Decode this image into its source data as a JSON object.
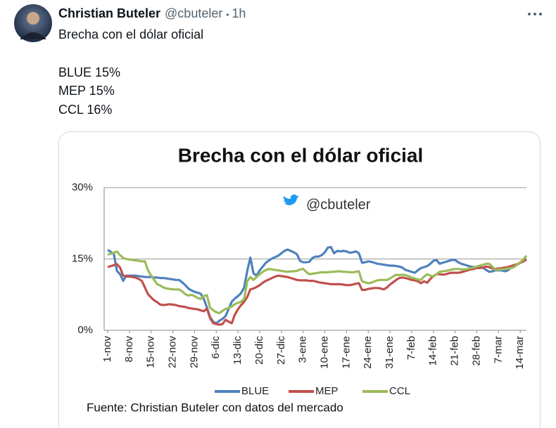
{
  "tweet": {
    "author": "Christian Buteler",
    "handle": "@cbuteler",
    "time": "1h",
    "text": [
      "Brecha con el dólar oficial",
      "BLUE 15%",
      "MEP 15%",
      "CCL 16%"
    ]
  },
  "chart_data": {
    "type": "line",
    "title": "Brecha con el dólar oficial",
    "annotation": "@cbuteler",
    "source": "Fuente: Christian Buteler con datos del mercado",
    "categories": [
      "1-nov",
      null,
      null,
      null,
      null,
      null,
      null,
      "8-nov",
      null,
      null,
      null,
      null,
      null,
      null,
      "15-nov",
      null,
      null,
      null,
      null,
      null,
      null,
      "22-nov",
      null,
      null,
      null,
      null,
      null,
      null,
      "29-nov",
      null,
      null,
      null,
      null,
      null,
      null,
      "6-dic",
      null,
      null,
      null,
      null,
      null,
      null,
      "13-dic",
      null,
      null,
      null,
      null,
      null,
      null,
      "20-dic",
      null,
      null,
      null,
      null,
      null,
      null,
      "27-dic",
      null,
      null,
      null,
      null,
      null,
      null,
      "3-ene",
      null,
      null,
      null,
      null,
      null,
      null,
      "10-ene",
      null,
      null,
      null,
      null,
      null,
      null,
      "17-ene",
      null,
      null,
      null,
      null,
      null,
      null,
      "24-ene",
      null,
      null,
      null,
      null,
      null,
      null,
      "31-ene",
      null,
      null,
      null,
      null,
      null,
      null,
      "7-feb",
      null,
      null,
      null,
      null,
      null,
      null,
      "14-feb",
      null,
      null,
      null,
      null,
      null,
      null,
      "21-feb",
      null,
      null,
      null,
      null,
      null,
      null,
      "28-feb",
      null,
      null,
      null,
      null,
      null,
      null,
      "7-mar",
      null,
      null,
      null,
      null,
      null,
      null,
      "14-mar",
      null,
      null
    ],
    "series": [
      {
        "name": "BLUE",
        "color": "#4f81bd",
        "values": [
          16.9,
          16.5,
          16.0,
          12.5,
          11.8,
          10.4,
          11.5,
          11.5,
          11.5,
          11.5,
          11.4,
          11.3,
          11.2,
          11.2,
          11.2,
          11.1,
          11.1,
          11.0,
          11.0,
          10.9,
          10.8,
          10.7,
          10.6,
          10.6,
          10.1,
          9.5,
          8.8,
          8.4,
          8.1,
          7.9,
          7.7,
          6.6,
          4.8,
          2.8,
          1.8,
          1.5,
          2.0,
          2.4,
          3.0,
          4.5,
          6.0,
          6.7,
          7.2,
          7.8,
          9.0,
          12.5,
          15.3,
          12.0,
          11.5,
          12.6,
          13.4,
          14.2,
          14.7,
          15.1,
          15.4,
          15.7,
          16.2,
          16.7,
          17.0,
          16.7,
          16.4,
          16.0,
          14.6,
          14.3,
          14.3,
          14.4,
          15.2,
          15.5,
          15.5,
          15.8,
          16.4,
          17.4,
          17.5,
          16.2,
          16.7,
          16.6,
          16.7,
          16.6,
          16.3,
          16.4,
          16.6,
          16.2,
          14.2,
          14.3,
          14.5,
          14.4,
          14.2,
          14.0,
          13.9,
          13.8,
          13.7,
          13.6,
          13.6,
          13.5,
          13.4,
          13.2,
          12.7,
          12.5,
          12.3,
          12.1,
          12.6,
          13.1,
          13.3,
          13.5,
          14.0,
          14.6,
          14.8,
          14.0,
          14.2,
          14.4,
          14.6,
          14.8,
          14.8,
          14.3,
          14.0,
          13.8,
          13.6,
          13.4,
          13.3,
          13.3,
          13.3,
          13.2,
          12.7,
          12.3,
          12.4,
          12.6,
          12.6,
          12.6,
          12.4,
          12.6,
          13.2,
          13.5,
          13.8,
          14.2,
          14.6,
          15.0
        ]
      },
      {
        "name": "MEP",
        "color": "#c0504d",
        "values": [
          13.3,
          13.5,
          13.7,
          13.9,
          13.2,
          11.5,
          11.3,
          11.3,
          11.2,
          11.1,
          10.8,
          10.4,
          9.0,
          7.6,
          6.9,
          6.3,
          5.9,
          5.4,
          5.3,
          5.4,
          5.5,
          5.4,
          5.3,
          5.1,
          5.0,
          4.9,
          4.7,
          4.6,
          4.5,
          4.4,
          4.2,
          4.0,
          4.6,
          2.6,
          1.5,
          1.3,
          1.2,
          1.3,
          2.2,
          1.8,
          1.5,
          3.3,
          4.4,
          5.3,
          6.0,
          7.0,
          8.6,
          8.8,
          9.1,
          9.5,
          10.0,
          10.4,
          10.7,
          11.0,
          11.3,
          11.5,
          11.4,
          11.3,
          11.2,
          11.0,
          10.8,
          10.6,
          10.5,
          10.5,
          10.5,
          10.4,
          10.4,
          10.3,
          10.1,
          10.0,
          9.9,
          9.8,
          9.7,
          9.7,
          9.7,
          9.7,
          9.6,
          9.5,
          9.5,
          9.6,
          9.8,
          9.9,
          8.5,
          8.5,
          8.7,
          8.8,
          8.9,
          8.9,
          8.8,
          8.6,
          9.0,
          9.6,
          10.1,
          10.6,
          11.0,
          11.1,
          11.0,
          10.8,
          10.6,
          10.5,
          10.3,
          9.9,
          10.3,
          10.0,
          10.8,
          11.4,
          11.8,
          11.8,
          11.7,
          11.8,
          12.0,
          12.1,
          12.1,
          12.1,
          12.2,
          12.4,
          12.6,
          12.8,
          12.9,
          13.1,
          13.1,
          13.2,
          13.4,
          13.3,
          13.0,
          12.9,
          13.0,
          13.1,
          13.2,
          13.3,
          13.5,
          13.7,
          13.9,
          14.2,
          14.5,
          14.9
        ]
      },
      {
        "name": "CCL",
        "color": "#9bbb59",
        "values": [
          15.9,
          16.1,
          16.3,
          16.6,
          15.8,
          15.2,
          15.0,
          14.9,
          14.8,
          14.7,
          14.6,
          14.5,
          14.5,
          12.6,
          11.5,
          10.6,
          9.7,
          9.4,
          9.0,
          8.8,
          8.7,
          8.6,
          8.6,
          8.6,
          8.2,
          7.6,
          7.3,
          7.5,
          7.2,
          6.8,
          6.6,
          7.2,
          7.4,
          4.8,
          4.2,
          3.8,
          3.6,
          4.1,
          4.5,
          4.7,
          5.0,
          5.5,
          5.8,
          6.0,
          6.6,
          10.3,
          11.2,
          10.6,
          11.2,
          11.8,
          12.3,
          12.7,
          12.9,
          12.8,
          12.7,
          12.6,
          12.5,
          12.4,
          12.3,
          12.4,
          12.4,
          12.5,
          12.8,
          12.9,
          12.3,
          11.8,
          11.9,
          12.0,
          12.1,
          12.2,
          12.2,
          12.2,
          12.3,
          12.3,
          12.4,
          12.4,
          12.3,
          12.3,
          12.2,
          12.2,
          12.3,
          12.4,
          10.3,
          10.1,
          9.9,
          10.0,
          10.3,
          10.5,
          10.6,
          10.6,
          10.6,
          10.9,
          11.3,
          11.7,
          11.6,
          11.7,
          11.6,
          11.4,
          11.1,
          10.9,
          10.7,
          10.6,
          11.3,
          11.8,
          11.5,
          11.3,
          11.8,
          12.3,
          12.4,
          12.5,
          12.6,
          12.8,
          12.9,
          12.9,
          12.8,
          12.8,
          12.9,
          13.1,
          13.2,
          13.4,
          13.6,
          13.8,
          14.0,
          14.0,
          13.4,
          12.7,
          12.8,
          12.8,
          12.9,
          13.0,
          13.1,
          13.3,
          13.8,
          14.3,
          14.9,
          15.7
        ]
      }
    ],
    "ylim": [
      0,
      30
    ],
    "yticks": [
      {
        "value": 0,
        "label": "0%"
      },
      {
        "value": 15,
        "label": "15%"
      },
      {
        "value": 30,
        "label": "30%"
      }
    ],
    "grid": true,
    "legend": "bottom"
  }
}
